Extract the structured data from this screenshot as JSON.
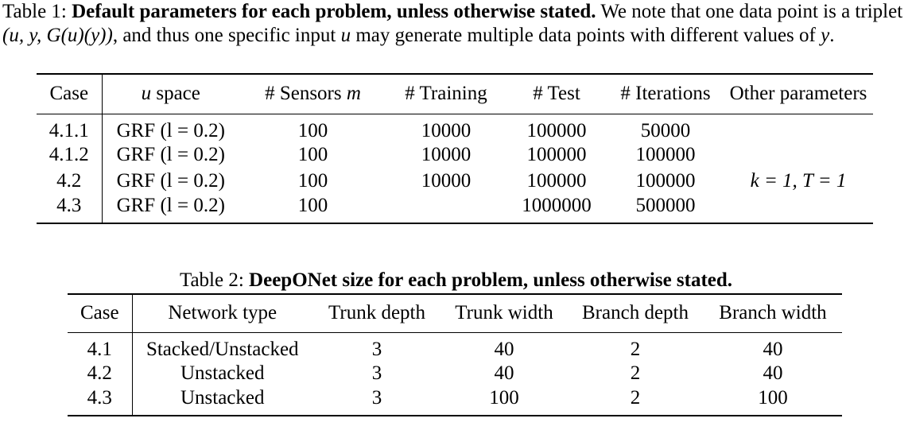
{
  "table1": {
    "caption_label": "Table 1:",
    "caption_title": "Default parameters for each problem, unless otherwise stated.",
    "caption_text_1": "We note that one data point is a triplet",
    "caption_math_1": "(u, y, G(u)(y))",
    "caption_text_2": ", and thus one specific input",
    "caption_math_2": "u",
    "caption_text_3": "may generate multiple data points with different values of",
    "caption_math_3": "y",
    "caption_text_4": ".",
    "headers": {
      "case": "Case",
      "u_space_var": "u",
      "u_space_text": "space",
      "sensors_text": "# Sensors",
      "sensors_var": "m",
      "training": "# Training",
      "test": "# Test",
      "iterations": "# Iterations",
      "other": "Other parameters"
    },
    "rows": [
      {
        "case": "4.1.1",
        "u_space": "GRF (l = 0.2)",
        "sensors": "100",
        "training": "10000",
        "test": "100000",
        "iterations": "50000",
        "other": ""
      },
      {
        "case": "4.1.2",
        "u_space": "GRF (l = 0.2)",
        "sensors": "100",
        "training": "10000",
        "test": "100000",
        "iterations": "100000",
        "other": ""
      },
      {
        "case": "4.2",
        "u_space": "GRF (l = 0.2)",
        "sensors": "100",
        "training": "10000",
        "test": "100000",
        "iterations": "100000",
        "other": "k = 1, T = 1"
      },
      {
        "case": "4.3",
        "u_space": "GRF (l = 0.2)",
        "sensors": "100",
        "training": "",
        "test": "1000000",
        "iterations": "500000",
        "other": ""
      }
    ]
  },
  "table2": {
    "caption_label": "Table 2:",
    "caption_title": "DeepONet size for each problem, unless otherwise stated.",
    "headers": {
      "case": "Case",
      "network_type": "Network type",
      "trunk_depth": "Trunk depth",
      "trunk_width": "Trunk width",
      "branch_depth": "Branch depth",
      "branch_width": "Branch width"
    },
    "rows": [
      {
        "case": "4.1",
        "network_type": "Stacked/Unstacked",
        "trunk_depth": "3",
        "trunk_width": "40",
        "branch_depth": "2",
        "branch_width": "40"
      },
      {
        "case": "4.2",
        "network_type": "Unstacked",
        "trunk_depth": "3",
        "trunk_width": "40",
        "branch_depth": "2",
        "branch_width": "40"
      },
      {
        "case": "4.3",
        "network_type": "Unstacked",
        "trunk_depth": "3",
        "trunk_width": "100",
        "branch_depth": "2",
        "branch_width": "100"
      }
    ]
  }
}
